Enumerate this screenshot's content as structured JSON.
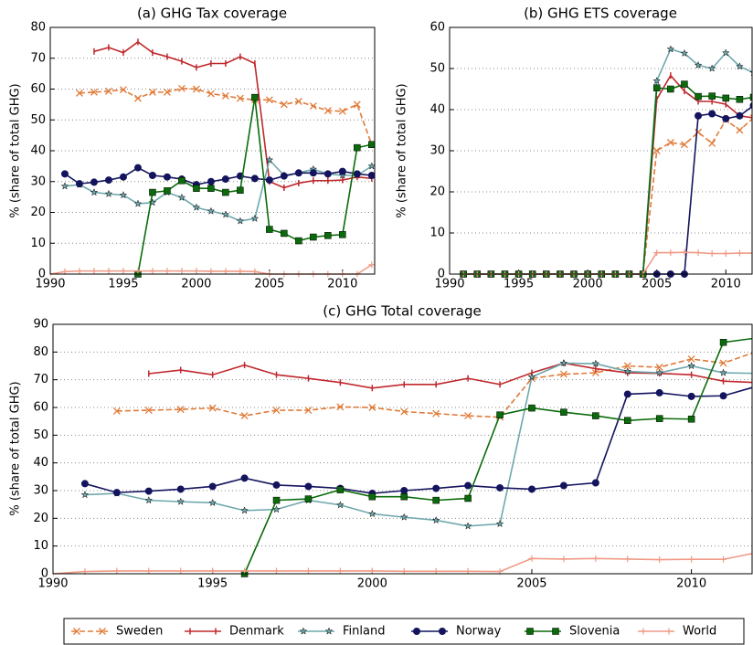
{
  "chart_data": [
    {
      "type": "line",
      "title": "(a) GHG Tax coverage",
      "y_label": "% (share of total GHG)",
      "x": [
        1990,
        1991,
        1992,
        1993,
        1994,
        1995,
        1996,
        1997,
        1998,
        1999,
        2000,
        2001,
        2002,
        2003,
        2004,
        2005,
        2006,
        2007,
        2008,
        2009,
        2010,
        2011,
        2012
      ],
      "xlim": [
        1990,
        2012.2
      ],
      "xticks": [
        1990,
        1995,
        2000,
        2005,
        2010
      ],
      "ylim": [
        0,
        80
      ],
      "yticks": [
        0,
        10,
        20,
        30,
        40,
        50,
        60,
        70,
        80
      ],
      "grid": true,
      "series": [
        {
          "name": "Sweden",
          "color": "#e07b39",
          "marker": "x",
          "dashed": true,
          "values": [
            null,
            null,
            58.7,
            59,
            59.3,
            59.8,
            57,
            59,
            59,
            60.2,
            60,
            58.5,
            57.8,
            57,
            56.5,
            56.5,
            55,
            56,
            54.5,
            53,
            52.8,
            55,
            42
          ]
        },
        {
          "name": "Denmark",
          "color": "#c0282d",
          "marker": "|",
          "dashed": false,
          "values": [
            null,
            null,
            null,
            72.2,
            73.5,
            71.8,
            75.3,
            71.8,
            70.5,
            69,
            67,
            68.3,
            68.3,
            70.5,
            68.3,
            30,
            28,
            29.5,
            30.3,
            30.3,
            30.5,
            31.5,
            31
          ]
        },
        {
          "name": "Finland",
          "color": "#6fa8ad",
          "marker": "*",
          "dashed": false,
          "values": [
            null,
            28.5,
            29,
            26.5,
            26,
            25.6,
            22.8,
            23.2,
            26.5,
            24.8,
            21.6,
            20.4,
            19.3,
            17.2,
            18,
            37,
            32,
            32.8,
            34,
            32.5,
            32,
            32,
            35
          ]
        },
        {
          "name": "Norway",
          "color": "#14145e",
          "marker": "o",
          "dashed": false,
          "values": [
            null,
            32.5,
            29.3,
            29.8,
            30.5,
            31.5,
            34.5,
            32,
            31.5,
            30.8,
            29,
            30,
            30.8,
            31.8,
            31,
            30.5,
            31.8,
            32.8,
            32.8,
            32.5,
            33.3,
            32.5,
            32
          ]
        },
        {
          "name": "Slovenia",
          "color": "#0b6b0b",
          "marker": "s",
          "dashed": false,
          "values": [
            null,
            null,
            null,
            null,
            null,
            null,
            0,
            26.5,
            27,
            30.3,
            27.8,
            27.8,
            26.5,
            27.2,
            57.3,
            14.5,
            13.2,
            10.8,
            12,
            12.5,
            12.8,
            41,
            42
          ]
        },
        {
          "name": "World",
          "color": "#f09a86",
          "marker": "+",
          "dashed": false,
          "values": [
            0,
            0.8,
            1,
            1,
            1,
            1,
            1,
            1,
            1,
            1,
            1,
            0.9,
            0.9,
            0.9,
            0.8,
            0,
            0,
            0,
            0,
            0,
            0,
            0,
            3
          ]
        }
      ]
    },
    {
      "type": "line",
      "title": "(b) GHG ETS coverage",
      "y_label": "% (share of total GHG)",
      "x": [
        1990,
        1991,
        1992,
        1993,
        1994,
        1995,
        1996,
        1997,
        1998,
        1999,
        2000,
        2001,
        2002,
        2003,
        2004,
        2005,
        2006,
        2007,
        2008,
        2009,
        2010,
        2011,
        2012
      ],
      "xlim": [
        1990,
        2011.9
      ],
      "xticks": [
        1990,
        1995,
        2000,
        2005,
        2010
      ],
      "ylim": [
        0,
        60
      ],
      "yticks": [
        0,
        10,
        20,
        30,
        40,
        50,
        60
      ],
      "grid": true,
      "series": [
        {
          "name": "Sweden",
          "color": "#e07b39",
          "marker": "x",
          "dashed": true,
          "values": [
            null,
            0,
            0,
            0,
            0,
            0,
            0,
            0,
            0,
            0,
            0,
            0,
            0,
            0,
            0,
            30,
            32,
            31.5,
            34.5,
            31.8,
            37.5,
            35,
            38
          ]
        },
        {
          "name": "Denmark",
          "color": "#c0282d",
          "marker": "|",
          "dashed": false,
          "values": [
            null,
            0,
            0,
            0,
            0,
            0,
            0,
            0,
            0,
            0,
            0,
            0,
            0,
            0,
            0,
            42.5,
            48.3,
            44.5,
            42,
            42,
            41.3,
            38.5,
            38
          ]
        },
        {
          "name": "Finland",
          "color": "#6fa8ad",
          "marker": "*",
          "dashed": false,
          "values": [
            null,
            0,
            0,
            0,
            0,
            0,
            0,
            0,
            0,
            0,
            0,
            0,
            0,
            0,
            0,
            47,
            54.7,
            53.7,
            50.8,
            50,
            53.8,
            50.5,
            49
          ]
        },
        {
          "name": "Norway",
          "color": "#14145e",
          "marker": "o",
          "dashed": false,
          "values": [
            null,
            0,
            0,
            0,
            0,
            0,
            0,
            0,
            0,
            0,
            0,
            0,
            0,
            0,
            0,
            0,
            0,
            0,
            38.5,
            39,
            37.8,
            38.5,
            41
          ]
        },
        {
          "name": "Slovenia",
          "color": "#0b6b0b",
          "marker": "s",
          "dashed": false,
          "values": [
            null,
            0,
            0,
            0,
            0,
            0,
            0,
            0,
            0,
            0,
            0,
            0,
            0,
            0,
            0,
            45.3,
            45,
            46.2,
            43.2,
            43.3,
            42.8,
            42.5,
            43
          ]
        },
        {
          "name": "World",
          "color": "#f09a86",
          "marker": "+",
          "dashed": false,
          "values": [
            null,
            0,
            0,
            0,
            0,
            0,
            0,
            0,
            0,
            0,
            0,
            0,
            0,
            0,
            0,
            5.2,
            5.2,
            5.3,
            5.2,
            5,
            5,
            5.1,
            5.1
          ]
        }
      ]
    },
    {
      "type": "line",
      "title": "(c) GHG Total coverage",
      "y_label": "% (share of total GHG)",
      "x": [
        1990,
        1991,
        1992,
        1993,
        1994,
        1995,
        1996,
        1997,
        1998,
        1999,
        2000,
        2001,
        2002,
        2003,
        2004,
        2005,
        2006,
        2007,
        2008,
        2009,
        2010,
        2011,
        2012
      ],
      "xlim": [
        1990,
        2011.9
      ],
      "xticks": [
        1990,
        1995,
        2000,
        2005,
        2010
      ],
      "ylim": [
        0,
        90
      ],
      "yticks": [
        0,
        10,
        20,
        30,
        40,
        50,
        60,
        70,
        80,
        90
      ],
      "grid": true,
      "series": [
        {
          "name": "Sweden",
          "color": "#e07b39",
          "marker": "x",
          "dashed": true,
          "values": [
            null,
            null,
            58.7,
            59,
            59.3,
            59.8,
            57,
            59,
            59,
            60.2,
            60,
            58.5,
            57.8,
            57,
            56.5,
            70.5,
            72,
            72.5,
            75,
            74.5,
            77.5,
            76,
            80
          ]
        },
        {
          "name": "Denmark",
          "color": "#c0282d",
          "marker": "|",
          "dashed": false,
          "values": [
            null,
            null,
            null,
            72.2,
            73.5,
            71.8,
            75.3,
            71.8,
            70.5,
            69,
            67,
            68.3,
            68.3,
            70.5,
            68.3,
            72.5,
            76,
            74,
            72.5,
            72.3,
            71.8,
            69.5,
            69
          ]
        },
        {
          "name": "Finland",
          "color": "#6fa8ad",
          "marker": "*",
          "dashed": false,
          "values": [
            null,
            28.5,
            29,
            26.5,
            26,
            25.6,
            22.8,
            23.2,
            26.5,
            24.8,
            21.6,
            20.4,
            19.3,
            17.2,
            18,
            71,
            76,
            75.8,
            73,
            72.5,
            75,
            72.5,
            72.3
          ]
        },
        {
          "name": "Norway",
          "color": "#14145e",
          "marker": "o",
          "dashed": false,
          "values": [
            null,
            32.5,
            29.3,
            29.8,
            30.5,
            31.5,
            34.5,
            32,
            31.5,
            30.8,
            29,
            30,
            30.8,
            31.8,
            31,
            30.5,
            31.8,
            32.8,
            64.8,
            65.3,
            64,
            64.2,
            67.5
          ]
        },
        {
          "name": "Slovenia",
          "color": "#0b6b0b",
          "marker": "s",
          "dashed": false,
          "values": [
            null,
            null,
            null,
            null,
            null,
            null,
            0,
            26.5,
            27,
            30.3,
            27.8,
            27.8,
            26.5,
            27.2,
            57.3,
            59.8,
            58.3,
            57,
            55.3,
            56,
            55.8,
            83.5,
            85
          ]
        },
        {
          "name": "World",
          "color": "#f09a86",
          "marker": "+",
          "dashed": false,
          "values": [
            0,
            0.8,
            1,
            1,
            1,
            1,
            1,
            1,
            1,
            1,
            1,
            0.9,
            0.9,
            0.9,
            0.8,
            5.5,
            5.3,
            5.5,
            5.3,
            5.1,
            5.2,
            5.2,
            7.5
          ]
        }
      ]
    }
  ]
}
